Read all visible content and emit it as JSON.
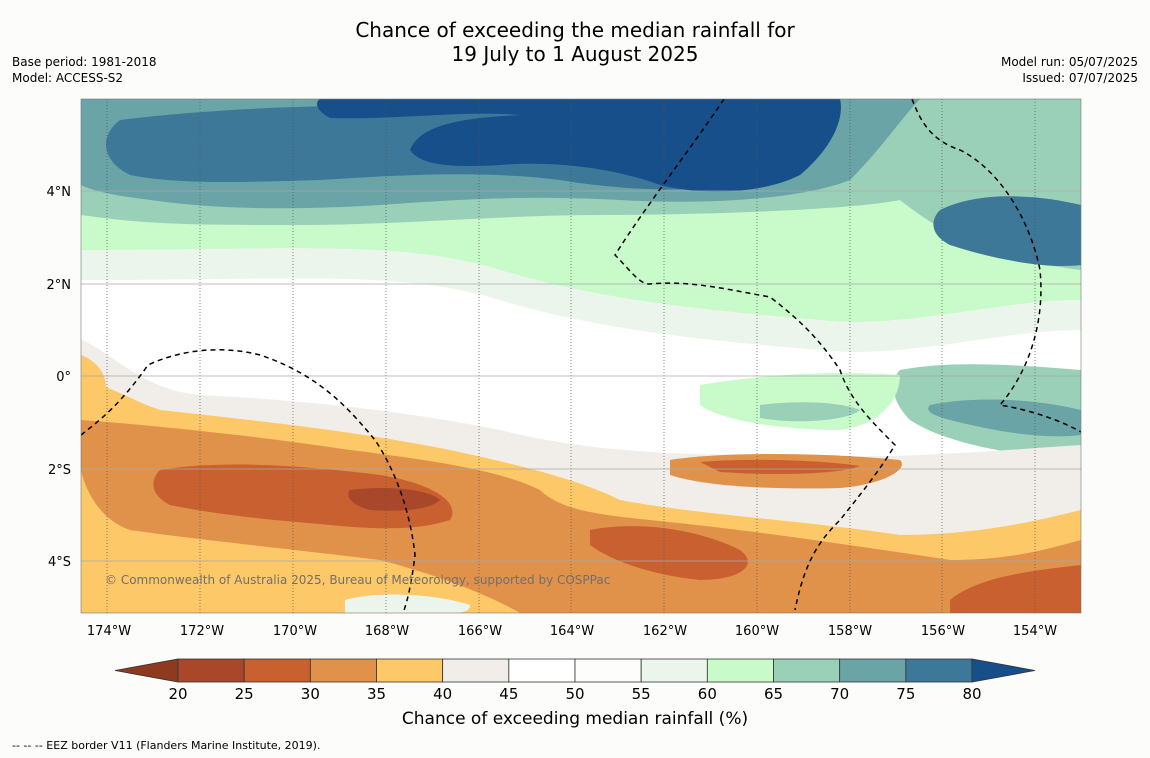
{
  "title": {
    "line1": "Chance of exceeding the median rainfall for",
    "line2": "19 July to 1 August 2025"
  },
  "meta_left": {
    "base_period": "Base period: 1981-2018",
    "model": "Model: ACCESS-S2"
  },
  "meta_right": {
    "model_run": "Model run: 05/07/2025",
    "issued": "Issued: 07/07/2025"
  },
  "map": {
    "lon_ticks": [
      "174°W",
      "172°W",
      "170°W",
      "168°W",
      "166°W",
      "164°W",
      "162°W",
      "160°W",
      "158°W",
      "156°W",
      "154°W"
    ],
    "lat_ticks": [
      "4°N",
      "2°N",
      "0°",
      "2°S",
      "4°S"
    ],
    "copyright": "© Commonwealth of Australia 2025, Bureau of Meteorology, supported by COSPPac"
  },
  "colorbar": {
    "tick_labels": [
      "20",
      "25",
      "30",
      "35",
      "40",
      "45",
      "50",
      "55",
      "60",
      "65",
      "70",
      "75",
      "80"
    ],
    "under_color": "#8e3a1f",
    "over_color": "#164f8a",
    "colors": [
      "#a9472a",
      "#c9602f",
      "#e0914a",
      "#fdc867",
      "#f1ede8",
      "#ffffff",
      "#fdfdfc",
      "#ecf5ec",
      "#c9fac9",
      "#9bd0b8",
      "#6aa4a6",
      "#3d7898"
    ],
    "label": "Chance of exceeding median rainfall (%)"
  },
  "footer": "-- -- -- EEZ border V11 (Flanders Marine Institute, 2019)."
}
